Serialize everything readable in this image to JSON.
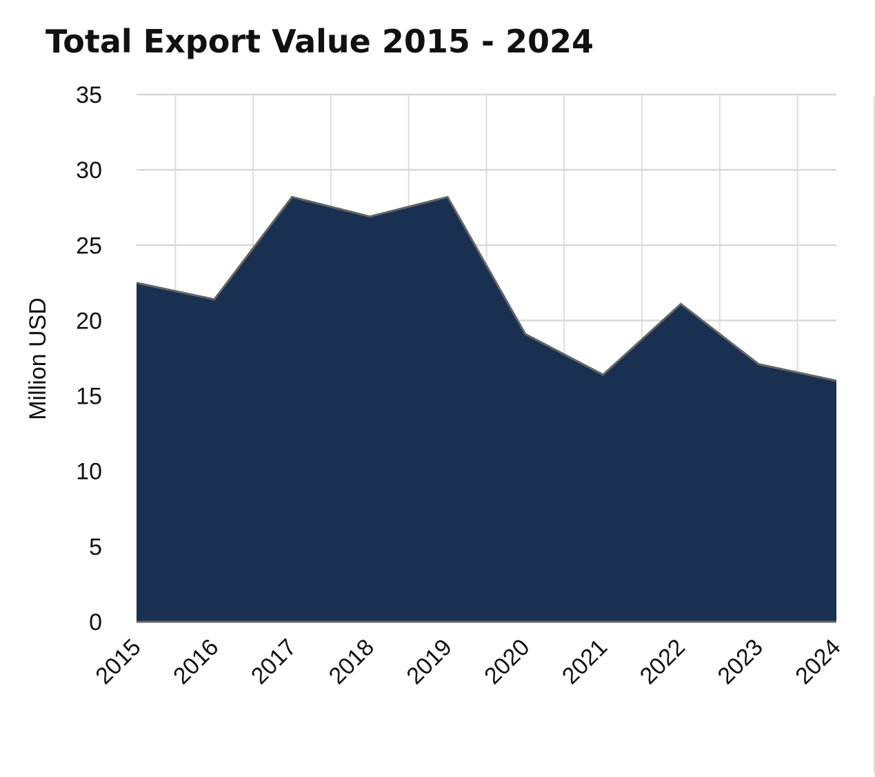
{
  "chart_data": {
    "type": "area",
    "title": "Total Export Value 2015 - 2024",
    "y_label": "Million USD",
    "categories": [
      "2015",
      "2016",
      "2017",
      "2018",
      "2019",
      "2020",
      "2021",
      "2022",
      "2023",
      "2024"
    ],
    "values": [
      22.5,
      21.4,
      28.2,
      26.9,
      28.2,
      19.1,
      16.4,
      21.1,
      17.1,
      16.0
    ],
    "color": "#1a3050",
    "line_color": "#666666",
    "ylim": [
      0,
      35
    ],
    "yticks": [
      0,
      5,
      10,
      15,
      20,
      25,
      30,
      35
    ],
    "grid": true
  }
}
